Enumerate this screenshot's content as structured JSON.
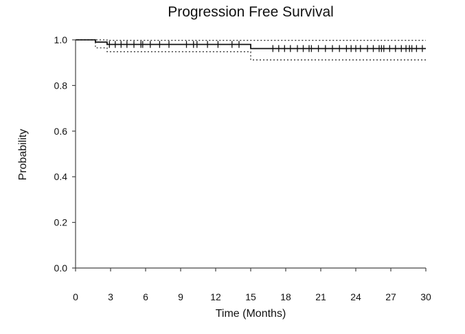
{
  "chart_data": {
    "type": "line",
    "title": "Progression Free Survival",
    "xlabel": "Time (Months)",
    "ylabel": "Probability",
    "xlim": [
      0,
      30
    ],
    "ylim": [
      0,
      1
    ],
    "x_ticks": [
      0,
      3,
      6,
      9,
      12,
      15,
      18,
      21,
      24,
      27,
      30
    ],
    "x_tick_labels": [
      "0",
      "3",
      "6",
      "9",
      "12",
      "15",
      "18",
      "21",
      "24",
      "27",
      "30"
    ],
    "y_ticks": [
      0,
      0.2,
      0.4,
      0.6,
      0.8,
      1.0
    ],
    "y_tick_labels": [
      "0.0",
      "0.2",
      "0.4",
      "0.6",
      "0.8",
      "1.0"
    ],
    "grid": false,
    "legend": "none",
    "series": [
      {
        "style": "step-solid",
        "color": "#111111",
        "points": [
          [
            0,
            1.0
          ],
          [
            1.7,
            1.0
          ],
          [
            1.7,
            0.99
          ],
          [
            2.7,
            0.99
          ],
          [
            2.7,
            0.98
          ],
          [
            15.0,
            0.98
          ],
          [
            15.0,
            0.962
          ],
          [
            30.0,
            0.962
          ]
        ]
      },
      {
        "style": "step-dotted",
        "color": "#333333",
        "points": [
          [
            0,
            1.0
          ],
          [
            2.7,
            1.0
          ],
          [
            2.7,
            0.998
          ],
          [
            30.0,
            0.998
          ]
        ]
      },
      {
        "style": "step-dotted",
        "color": "#333333",
        "points": [
          [
            1.7,
            0.99
          ],
          [
            1.7,
            0.965
          ],
          [
            2.7,
            0.965
          ],
          [
            2.7,
            0.948
          ],
          [
            15.0,
            0.948
          ],
          [
            15.0,
            0.912
          ],
          [
            30.0,
            0.912
          ]
        ]
      }
    ],
    "censor_marks": {
      "color": "#111111",
      "points": [
        [
          2.9,
          0.98
        ],
        [
          3.4,
          0.98
        ],
        [
          3.9,
          0.98
        ],
        [
          4.4,
          0.98
        ],
        [
          5.0,
          0.98
        ],
        [
          5.6,
          0.98
        ],
        [
          5.75,
          0.98
        ],
        [
          6.4,
          0.98
        ],
        [
          7.2,
          0.98
        ],
        [
          8.0,
          0.98
        ],
        [
          9.5,
          0.98
        ],
        [
          10.1,
          0.98
        ],
        [
          10.4,
          0.98
        ],
        [
          11.3,
          0.98
        ],
        [
          12.2,
          0.98
        ],
        [
          13.4,
          0.98
        ],
        [
          14.0,
          0.98
        ],
        [
          16.9,
          0.962
        ],
        [
          17.4,
          0.962
        ],
        [
          17.9,
          0.962
        ],
        [
          18.4,
          0.962
        ],
        [
          19.0,
          0.962
        ],
        [
          19.5,
          0.962
        ],
        [
          20.0,
          0.962
        ],
        [
          20.2,
          0.962
        ],
        [
          20.8,
          0.962
        ],
        [
          21.4,
          0.962
        ],
        [
          22.0,
          0.962
        ],
        [
          22.6,
          0.962
        ],
        [
          23.2,
          0.962
        ],
        [
          23.6,
          0.962
        ],
        [
          24.0,
          0.962
        ],
        [
          24.4,
          0.962
        ],
        [
          25.0,
          0.962
        ],
        [
          25.5,
          0.962
        ],
        [
          26.0,
          0.962
        ],
        [
          26.2,
          0.962
        ],
        [
          26.4,
          0.962
        ],
        [
          26.9,
          0.962
        ],
        [
          27.4,
          0.962
        ],
        [
          27.9,
          0.962
        ],
        [
          28.3,
          0.962
        ],
        [
          28.6,
          0.962
        ],
        [
          28.8,
          0.962
        ],
        [
          29.2,
          0.962
        ],
        [
          29.7,
          0.962
        ]
      ]
    }
  }
}
